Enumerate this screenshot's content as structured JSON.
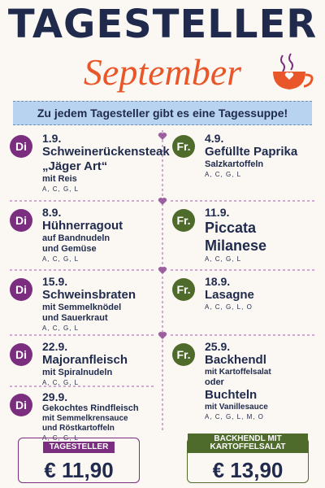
{
  "header": {
    "title": "TAGESTELLER",
    "subtitle": "September"
  },
  "banner": "Zu jedem Tagesteller gibt es eine Tagessuppe!",
  "columns": [
    {
      "entries": [
        {
          "day": "Di",
          "date": "1.9.",
          "lines": [
            {
              "text": "Schweinerückensteak",
              "style": "dish"
            },
            {
              "text": "„Jäger Art“",
              "style": "dish"
            },
            {
              "text": "mit Reis",
              "style": "side"
            }
          ],
          "allergens": "A, C, G, L"
        },
        {
          "day": "Di",
          "date": "8.9.",
          "lines": [
            {
              "text": "Hühnerragout",
              "style": "dish"
            },
            {
              "text": "auf Bandnudeln",
              "style": "side"
            },
            {
              "text": "und Gemüse",
              "style": "side"
            }
          ],
          "allergens": "A, C, G, L"
        },
        {
          "day": "Di",
          "date": "15.9.",
          "lines": [
            {
              "text": "Schweinsbraten",
              "style": "dish"
            },
            {
              "text": "mit Semmelknödel",
              "style": "side"
            },
            {
              "text": "und Sauerkraut",
              "style": "side"
            }
          ],
          "allergens": "A, C, G, L"
        },
        {
          "day": "Di",
          "date": "22.9.",
          "lines": [
            {
              "text": "Majoranfleisch",
              "style": "dish"
            },
            {
              "text": "mit Spiralnudeln",
              "style": "side"
            }
          ],
          "allergens": "A, C, G, L"
        },
        {
          "day": "Di",
          "date": "29.9.",
          "lines": [
            {
              "text": "Gekochtes Rindfleisch",
              "style": "side"
            },
            {
              "text": "mit Semmelkrensauce",
              "style": "small"
            },
            {
              "text": "und Röstkartoffeln",
              "style": "small"
            }
          ],
          "allergens": "A, C, G, L"
        }
      ]
    },
    {
      "entries": [
        {
          "day": "Fr.",
          "date": "4.9.",
          "lines": [
            {
              "text": "Gefüllte Paprika",
              "style": "dish"
            },
            {
              "text": "Salzkartoffeln",
              "style": "side"
            }
          ],
          "allergens": "A, C, G, L"
        },
        {
          "day": "Fr.",
          "date": "11.9.",
          "lines": [
            {
              "text": "Piccata Milanese",
              "style": "dish-big"
            }
          ],
          "allergens": "A, C, G, L"
        },
        {
          "day": "Fr.",
          "date": "18.9.",
          "lines": [
            {
              "text": "Lasagne",
              "style": "dish"
            }
          ],
          "allergens": "A, C, G, L, O"
        },
        {
          "day": "Fr.",
          "date": "25.9.",
          "lines": [
            {
              "text": "Backhendl",
              "style": "dish"
            },
            {
              "text": "mit Kartoffelsalat",
              "style": "small"
            },
            {
              "text": "oder",
              "style": "side"
            },
            {
              "text": "Buchteln",
              "style": "dish"
            },
            {
              "text": "mit Vanillesauce",
              "style": "small"
            }
          ],
          "allergens": "A, C, G, L, M, O"
        }
      ]
    }
  ],
  "prices": [
    {
      "label": "TAGESTELLER",
      "price": "€ 11,90"
    },
    {
      "label": "BACKHENDL MIT KARTOFFELSALAT",
      "price": "€ 13,90"
    }
  ]
}
